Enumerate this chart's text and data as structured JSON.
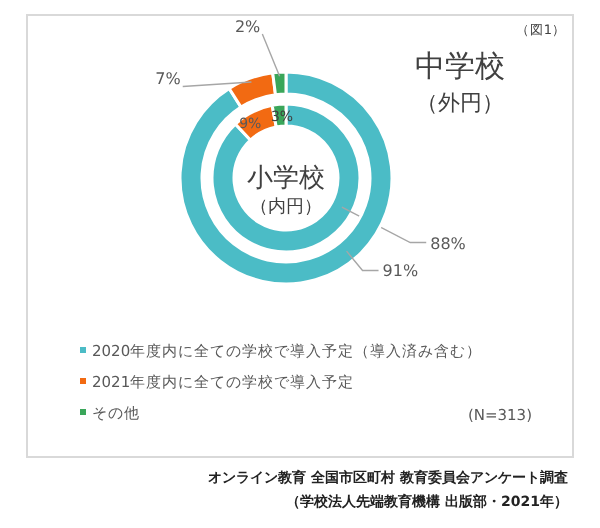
{
  "chart_data": {
    "type": "donut",
    "categories": [
      "2020年度内に全ての学校で導入予定（導入済み含む）",
      "2021年度内に全ての学校で導入予定",
      "その他"
    ],
    "colors": [
      "#4bbcc6",
      "#f26a12",
      "#3aa65a"
    ],
    "series": [
      {
        "name": "小学校",
        "values": [
          88,
          9,
          3
        ],
        "value_labels": [
          "88%",
          "9%",
          "3%"
        ]
      },
      {
        "name": "中学校",
        "values": [
          91,
          7,
          2
        ],
        "value_labels": [
          "91%",
          "7%",
          "2%"
        ]
      }
    ],
    "legend": "bottom left",
    "annotations": [
      "（内円）",
      "（外円）",
      "（図1）",
      "(N=313)",
      "オンライン教育 全国市区町村 教育委員会アンケート調査",
      "（学校法人先端教育機構 出版部・2021年）"
    ]
  }
}
